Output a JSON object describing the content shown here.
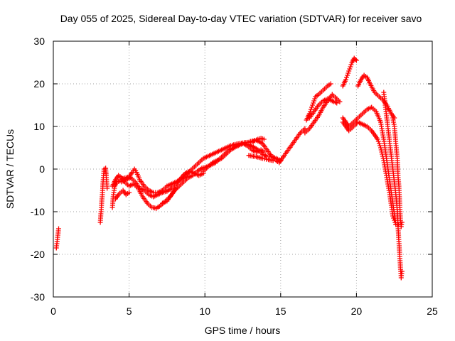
{
  "chart_data": {
    "type": "scatter",
    "title": "Day 055 of 2025, Sidereal Day-to-day VTEC variation (SDTVAR) for receiver savo",
    "xlabel": "GPS time / hours",
    "ylabel": "SDTVAR / TECUs",
    "xlim": [
      0,
      25
    ],
    "ylim": [
      -30,
      30
    ],
    "xticks": [
      "0",
      "5",
      "10",
      "15",
      "20",
      "25"
    ],
    "yticks": [
      "-30",
      "-20",
      "-10",
      "0",
      "10",
      "20",
      "30"
    ],
    "grid": true,
    "marker": "+",
    "series": [
      {
        "name": "SDTVAR",
        "color": "#ff0000",
        "tracks": [
          [
            [
              0.2,
              -18.5
            ],
            [
              0.25,
              -17
            ],
            [
              0.3,
              -15.5
            ],
            [
              0.35,
              -14
            ]
          ],
          [
            [
              3.1,
              -12.5
            ],
            [
              3.15,
              -10
            ],
            [
              3.2,
              -7.5
            ],
            [
              3.25,
              -5
            ],
            [
              3.3,
              -2
            ],
            [
              3.35,
              0
            ],
            [
              3.45,
              0.2
            ],
            [
              3.5,
              -2
            ],
            [
              3.55,
              -4.5
            ]
          ],
          [
            [
              3.9,
              -9
            ],
            [
              3.95,
              -6.5
            ],
            [
              4.05,
              -4
            ],
            [
              4.2,
              -3
            ],
            [
              4.4,
              -2.8
            ],
            [
              4.6,
              -2.2
            ],
            [
              4.8,
              -2
            ],
            [
              5.0,
              -1.8
            ],
            [
              5.2,
              -0.8
            ],
            [
              5.35,
              0
            ],
            [
              5.5,
              -0.8
            ],
            [
              5.7,
              -2.5
            ],
            [
              6.0,
              -4
            ],
            [
              6.3,
              -5
            ],
            [
              6.6,
              -5.5
            ],
            [
              6.9,
              -5.5
            ],
            [
              7.2,
              -5
            ],
            [
              7.5,
              -4
            ],
            [
              7.8,
              -3.5
            ],
            [
              8.1,
              -3
            ],
            [
              8.4,
              -2.5
            ],
            [
              8.7,
              -1.8
            ],
            [
              9.0,
              -0.5
            ],
            [
              9.3,
              0.5
            ],
            [
              9.6,
              1.5
            ],
            [
              9.9,
              2.5
            ],
            [
              10.2,
              3
            ],
            [
              10.5,
              3.5
            ],
            [
              10.8,
              4
            ],
            [
              11.1,
              4.5
            ],
            [
              11.4,
              5
            ],
            [
              11.7,
              5.5
            ],
            [
              12.0,
              5.8
            ],
            [
              12.3,
              6
            ],
            [
              12.6,
              6.2
            ],
            [
              12.9,
              6.3
            ],
            [
              13.2,
              6.5
            ],
            [
              13.5,
              7
            ],
            [
              13.7,
              7.2
            ],
            [
              13.9,
              7
            ]
          ],
          [
            [
              3.9,
              -4
            ],
            [
              4.1,
              -2.5
            ],
            [
              4.3,
              -1.5
            ],
            [
              4.5,
              -2
            ],
            [
              4.7,
              -3
            ],
            [
              5.0,
              -4
            ],
            [
              5.3,
              -3.5
            ],
            [
              5.6,
              -4.5
            ],
            [
              5.9,
              -6.5
            ],
            [
              6.2,
              -8
            ],
            [
              6.5,
              -9
            ],
            [
              6.8,
              -9.2
            ],
            [
              7.1,
              -8.5
            ],
            [
              7.4,
              -7.5
            ],
            [
              7.7,
              -6.5
            ],
            [
              8.0,
              -5
            ],
            [
              8.3,
              -4
            ],
            [
              8.6,
              -3
            ],
            [
              8.9,
              -2
            ],
            [
              9.2,
              -1.5
            ],
            [
              9.5,
              -0.5
            ],
            [
              9.8,
              0.2
            ],
            [
              10.1,
              0.5
            ],
            [
              10.4,
              1
            ],
            [
              10.7,
              1.5
            ],
            [
              11.0,
              2.5
            ],
            [
              11.3,
              3.5
            ],
            [
              11.6,
              4.5
            ],
            [
              11.9,
              5
            ],
            [
              12.2,
              5.5
            ],
            [
              12.5,
              6
            ],
            [
              12.8,
              5.5
            ],
            [
              13.1,
              4.5
            ],
            [
              13.4,
              4
            ],
            [
              13.7,
              4.5
            ],
            [
              13.9,
              4
            ]
          ],
          [
            [
              4.5,
              -3
            ],
            [
              4.8,
              -2.5
            ],
            [
              5.1,
              -2
            ],
            [
              5.4,
              -3
            ],
            [
              5.7,
              -4.5
            ],
            [
              6.0,
              -5
            ],
            [
              6.3,
              -6
            ],
            [
              6.6,
              -6.5
            ],
            [
              6.9,
              -6
            ],
            [
              7.2,
              -5.5
            ],
            [
              7.5,
              -5.2
            ],
            [
              7.8,
              -4.5
            ],
            [
              8.1,
              -3.5
            ],
            [
              8.4,
              -2.2
            ],
            [
              8.7,
              -1
            ],
            [
              9.0,
              -0.5
            ],
            [
              9.3,
              -1
            ],
            [
              9.6,
              -1.5
            ],
            [
              9.9,
              -1
            ]
          ],
          [
            [
              4.1,
              -7
            ],
            [
              4.3,
              -6
            ],
            [
              4.6,
              -5
            ],
            [
              4.8,
              -6
            ],
            [
              5.0,
              -5.5
            ]
          ],
          [
            [
              7.2,
              -8
            ],
            [
              7.5,
              -7.5
            ],
            [
              7.8,
              -6
            ],
            [
              8.1,
              -4.5
            ]
          ],
          [
            [
              9.9,
              -0.5
            ],
            [
              10.2,
              0.5
            ],
            [
              10.5,
              1.5
            ],
            [
              10.8,
              2
            ],
            [
              11.1,
              2.5
            ],
            [
              11.4,
              3.5
            ],
            [
              11.7,
              4.5
            ],
            [
              12.0,
              5.2
            ],
            [
              12.3,
              5.8
            ],
            [
              12.6,
              6
            ],
            [
              12.9,
              5.7
            ],
            [
              13.2,
              5.2
            ],
            [
              13.5,
              4.5
            ],
            [
              13.8,
              3.5
            ],
            [
              14.1,
              3
            ],
            [
              14.4,
              3
            ],
            [
              14.7,
              2.5
            ],
            [
              15.0,
              2
            ]
          ],
          [
            [
              12.9,
              3.2
            ],
            [
              13.2,
              3
            ],
            [
              13.5,
              2.8
            ],
            [
              13.8,
              2.5
            ],
            [
              14.2,
              2.2
            ],
            [
              14.5,
              2
            ]
          ],
          [
            [
              13.0,
              6.5
            ],
            [
              13.4,
              6.8
            ],
            [
              13.8,
              6
            ],
            [
              14.1,
              4.5
            ],
            [
              14.4,
              3
            ],
            [
              14.7,
              2
            ],
            [
              14.9,
              1.5
            ],
            [
              15.1,
              2.5
            ],
            [
              15.4,
              4
            ],
            [
              15.7,
              5.5
            ],
            [
              16.0,
              7
            ],
            [
              16.3,
              8.5
            ],
            [
              16.6,
              9.5
            ]
          ],
          [
            [
              16.6,
              8.5
            ],
            [
              16.9,
              9.5
            ],
            [
              17.2,
              11
            ],
            [
              17.5,
              12.5
            ],
            [
              17.8,
              14.5
            ],
            [
              18.1,
              16
            ],
            [
              18.4,
              17.5
            ],
            [
              18.7,
              16.5
            ],
            [
              18.9,
              15.8
            ]
          ],
          [
            [
              16.7,
              11.5
            ],
            [
              16.9,
              13
            ],
            [
              17.1,
              15
            ],
            [
              17.3,
              17
            ],
            [
              17.5,
              17.5
            ],
            [
              17.8,
              18.5
            ],
            [
              18.1,
              19.5
            ],
            [
              18.3,
              20
            ]
          ],
          [
            [
              16.9,
              12
            ],
            [
              17.2,
              13.5
            ],
            [
              17.5,
              15
            ],
            [
              17.8,
              16
            ],
            [
              18.1,
              16.5
            ],
            [
              18.4,
              16
            ],
            [
              18.7,
              15.5
            ]
          ],
          [
            [
              19.1,
              19.5
            ],
            [
              19.3,
              21
            ],
            [
              19.5,
              23
            ],
            [
              19.7,
              25
            ],
            [
              19.85,
              26
            ],
            [
              20.0,
              25.5
            ]
          ],
          [
            [
              19.1,
              12
            ],
            [
              19.3,
              11
            ],
            [
              19.5,
              10
            ],
            [
              19.8,
              11
            ],
            [
              20.1,
              12
            ],
            [
              20.4,
              13
            ],
            [
              20.7,
              14
            ],
            [
              21.0,
              14.5
            ],
            [
              21.3,
              13.5
            ],
            [
              21.6,
              11
            ],
            [
              21.8,
              7
            ],
            [
              22.0,
              2
            ],
            [
              22.2,
              -3
            ],
            [
              22.4,
              -8
            ],
            [
              22.6,
              -13
            ],
            [
              22.8,
              -13
            ]
          ],
          [
            [
              19.1,
              11
            ],
            [
              19.3,
              10
            ],
            [
              19.5,
              9
            ],
            [
              19.8,
              10
            ],
            [
              20.1,
              11
            ],
            [
              20.4,
              10.5
            ],
            [
              20.7,
              10
            ],
            [
              21.0,
              9
            ],
            [
              21.2,
              8
            ],
            [
              21.4,
              7
            ],
            [
              21.6,
              5
            ],
            [
              21.8,
              2
            ],
            [
              22.0,
              -2
            ],
            [
              22.2,
              -6
            ],
            [
              22.4,
              -11
            ],
            [
              22.6,
              -13
            ]
          ],
          [
            [
              20.1,
              19.5
            ],
            [
              20.3,
              21
            ],
            [
              20.5,
              22
            ],
            [
              20.7,
              21.5
            ],
            [
              20.9,
              20
            ],
            [
              21.2,
              18
            ],
            [
              21.5,
              17
            ],
            [
              21.8,
              16
            ],
            [
              22.0,
              15
            ],
            [
              22.3,
              13
            ],
            [
              22.5,
              12
            ]
          ],
          [
            [
              21.8,
              18
            ],
            [
              21.9,
              15
            ],
            [
              22.0,
              12
            ],
            [
              22.1,
              9
            ],
            [
              22.2,
              6
            ],
            [
              22.3,
              3
            ],
            [
              22.4,
              0
            ],
            [
              22.5,
              -3
            ],
            [
              22.6,
              -6
            ],
            [
              22.7,
              -10
            ],
            [
              22.75,
              -14
            ],
            [
              22.8,
              -17
            ],
            [
              22.85,
              -20
            ],
            [
              22.9,
              -23
            ],
            [
              22.95,
              -25.5
            ],
            [
              23.0,
              -24
            ]
          ],
          [
            [
              22.4,
              12
            ],
            [
              22.5,
              10
            ],
            [
              22.6,
              6
            ],
            [
              22.7,
              2
            ],
            [
              22.75,
              -2
            ],
            [
              22.8,
              -4
            ],
            [
              22.85,
              -8
            ],
            [
              22.9,
              -12
            ],
            [
              22.95,
              -13.5
            ],
            [
              23.0,
              -12.5
            ]
          ]
        ]
      }
    ]
  }
}
